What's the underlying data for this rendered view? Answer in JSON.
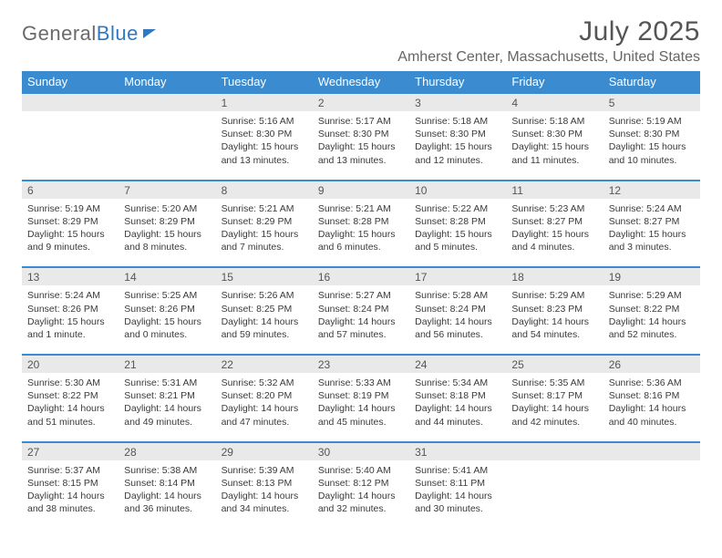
{
  "logo": {
    "text1": "General",
    "text2": "Blue"
  },
  "title": "July 2025",
  "location": "Amherst Center, Massachusetts, United States",
  "colors": {
    "header_bg": "#3b8bd0",
    "header_text": "#ffffff",
    "daynum_bg": "#e9e9e9",
    "rule": "#3b8bd0",
    "text": "#3a3a3a",
    "logo_blue": "#2f78c4"
  },
  "columns": [
    "Sunday",
    "Monday",
    "Tuesday",
    "Wednesday",
    "Thursday",
    "Friday",
    "Saturday"
  ],
  "weeks": [
    [
      null,
      null,
      {
        "d": "1",
        "sr": "5:16 AM",
        "ss": "8:30 PM",
        "dl": "15 hours and 13 minutes."
      },
      {
        "d": "2",
        "sr": "5:17 AM",
        "ss": "8:30 PM",
        "dl": "15 hours and 13 minutes."
      },
      {
        "d": "3",
        "sr": "5:18 AM",
        "ss": "8:30 PM",
        "dl": "15 hours and 12 minutes."
      },
      {
        "d": "4",
        "sr": "5:18 AM",
        "ss": "8:30 PM",
        "dl": "15 hours and 11 minutes."
      },
      {
        "d": "5",
        "sr": "5:19 AM",
        "ss": "8:30 PM",
        "dl": "15 hours and 10 minutes."
      }
    ],
    [
      {
        "d": "6",
        "sr": "5:19 AM",
        "ss": "8:29 PM",
        "dl": "15 hours and 9 minutes."
      },
      {
        "d": "7",
        "sr": "5:20 AM",
        "ss": "8:29 PM",
        "dl": "15 hours and 8 minutes."
      },
      {
        "d": "8",
        "sr": "5:21 AM",
        "ss": "8:29 PM",
        "dl": "15 hours and 7 minutes."
      },
      {
        "d": "9",
        "sr": "5:21 AM",
        "ss": "8:28 PM",
        "dl": "15 hours and 6 minutes."
      },
      {
        "d": "10",
        "sr": "5:22 AM",
        "ss": "8:28 PM",
        "dl": "15 hours and 5 minutes."
      },
      {
        "d": "11",
        "sr": "5:23 AM",
        "ss": "8:27 PM",
        "dl": "15 hours and 4 minutes."
      },
      {
        "d": "12",
        "sr": "5:24 AM",
        "ss": "8:27 PM",
        "dl": "15 hours and 3 minutes."
      }
    ],
    [
      {
        "d": "13",
        "sr": "5:24 AM",
        "ss": "8:26 PM",
        "dl": "15 hours and 1 minute."
      },
      {
        "d": "14",
        "sr": "5:25 AM",
        "ss": "8:26 PM",
        "dl": "15 hours and 0 minutes."
      },
      {
        "d": "15",
        "sr": "5:26 AM",
        "ss": "8:25 PM",
        "dl": "14 hours and 59 minutes."
      },
      {
        "d": "16",
        "sr": "5:27 AM",
        "ss": "8:24 PM",
        "dl": "14 hours and 57 minutes."
      },
      {
        "d": "17",
        "sr": "5:28 AM",
        "ss": "8:24 PM",
        "dl": "14 hours and 56 minutes."
      },
      {
        "d": "18",
        "sr": "5:29 AM",
        "ss": "8:23 PM",
        "dl": "14 hours and 54 minutes."
      },
      {
        "d": "19",
        "sr": "5:29 AM",
        "ss": "8:22 PM",
        "dl": "14 hours and 52 minutes."
      }
    ],
    [
      {
        "d": "20",
        "sr": "5:30 AM",
        "ss": "8:22 PM",
        "dl": "14 hours and 51 minutes."
      },
      {
        "d": "21",
        "sr": "5:31 AM",
        "ss": "8:21 PM",
        "dl": "14 hours and 49 minutes."
      },
      {
        "d": "22",
        "sr": "5:32 AM",
        "ss": "8:20 PM",
        "dl": "14 hours and 47 minutes."
      },
      {
        "d": "23",
        "sr": "5:33 AM",
        "ss": "8:19 PM",
        "dl": "14 hours and 45 minutes."
      },
      {
        "d": "24",
        "sr": "5:34 AM",
        "ss": "8:18 PM",
        "dl": "14 hours and 44 minutes."
      },
      {
        "d": "25",
        "sr": "5:35 AM",
        "ss": "8:17 PM",
        "dl": "14 hours and 42 minutes."
      },
      {
        "d": "26",
        "sr": "5:36 AM",
        "ss": "8:16 PM",
        "dl": "14 hours and 40 minutes."
      }
    ],
    [
      {
        "d": "27",
        "sr": "5:37 AM",
        "ss": "8:15 PM",
        "dl": "14 hours and 38 minutes."
      },
      {
        "d": "28",
        "sr": "5:38 AM",
        "ss": "8:14 PM",
        "dl": "14 hours and 36 minutes."
      },
      {
        "d": "29",
        "sr": "5:39 AM",
        "ss": "8:13 PM",
        "dl": "14 hours and 34 minutes."
      },
      {
        "d": "30",
        "sr": "5:40 AM",
        "ss": "8:12 PM",
        "dl": "14 hours and 32 minutes."
      },
      {
        "d": "31",
        "sr": "5:41 AM",
        "ss": "8:11 PM",
        "dl": "14 hours and 30 minutes."
      },
      null,
      null
    ]
  ],
  "labels": {
    "sunrise": "Sunrise:",
    "sunset": "Sunset:",
    "daylight": "Daylight:"
  }
}
